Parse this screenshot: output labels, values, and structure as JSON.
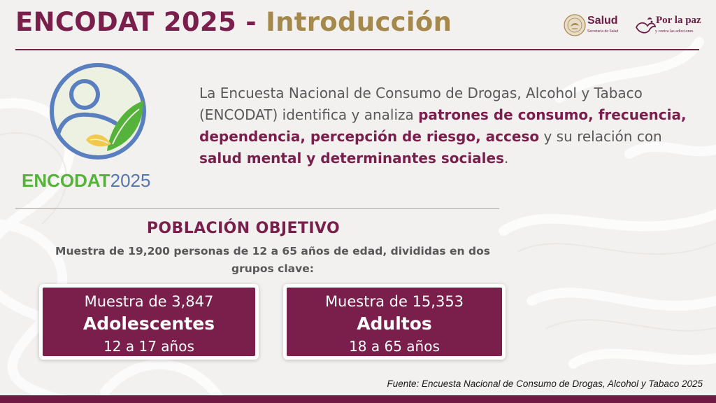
{
  "header": {
    "title_main": "ENCODAT 2025",
    "title_separator": " - ",
    "title_section": "Introducción"
  },
  "logos": {
    "salud": "Salud",
    "salud_sub": "Secretaría de Salud",
    "paz": "Por la paz",
    "paz_sub": "y contra las adicciones"
  },
  "encodat_logo": {
    "word_green": "ENCODAT",
    "word_blue": "2025"
  },
  "intro": {
    "t1": "La Encuesta Nacional de Consumo de Drogas, Alcohol y Tabaco (ENCODAT) identifica y analiza ",
    "b1": "patrones de consumo, frecuencia, dependencia, percepción de riesgo, acceso",
    "t2": " y su relación con ",
    "b2": "salud mental y determinantes sociales",
    "t3": "."
  },
  "poblacion": {
    "title": "POBLACIÓN OBJETIVO",
    "description": "Muestra de 19,200 personas de 12 a 65 años de edad, divididas en dos grupos clave:"
  },
  "groups": [
    {
      "sample": "Muestra de 3,847",
      "name": "Adolescentes",
      "range": "12 a 17 años"
    },
    {
      "sample": "Muestra de 15,353",
      "name": "Adultos",
      "range": "18 a 65 años"
    }
  ],
  "source": "Fuente: Encuesta Nacional de Consumo de Drogas, Alcohol y Tabaco 2025",
  "colors": {
    "primary": "#7a1f4c",
    "gold": "#a5884c",
    "body_text": "#58585a",
    "logo_green": "#55b23a",
    "logo_blue": "#5577b0"
  }
}
